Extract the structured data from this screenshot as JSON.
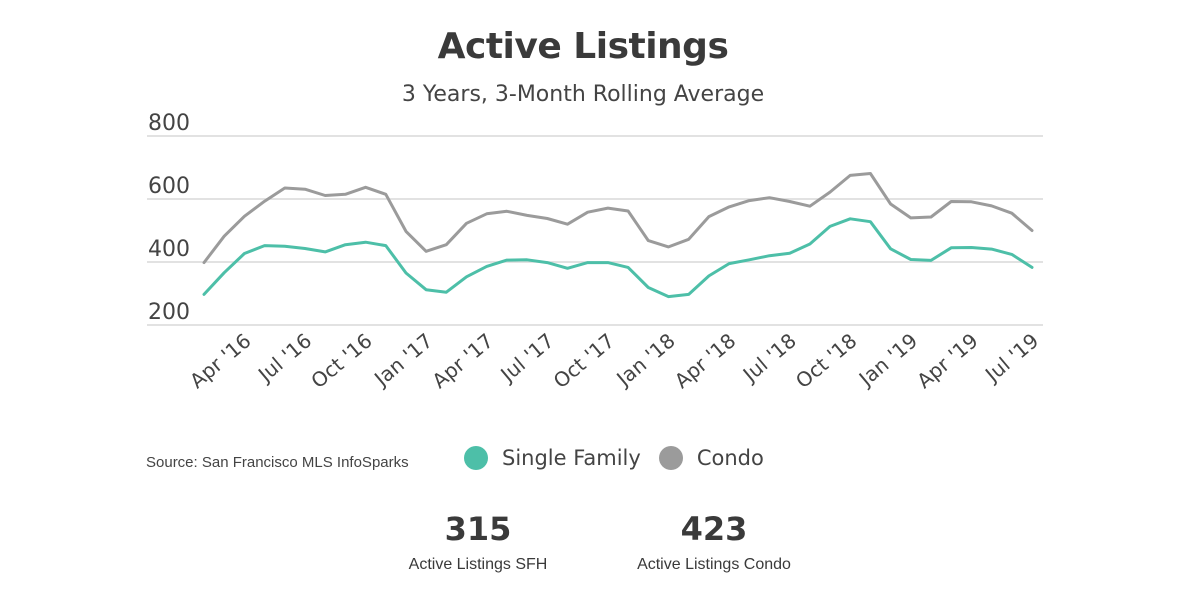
{
  "chart_data": {
    "type": "line",
    "title": "Active Listings",
    "subtitle": "3 Years, 3-Month Rolling Average",
    "ylim": [
      200,
      800
    ],
    "yticks": [
      "800",
      "600",
      "400",
      "200"
    ],
    "ytick_values": [
      800,
      600,
      400,
      200
    ],
    "grid": true,
    "xtick_labels": [
      "Apr '16",
      "Jul '16",
      "Oct '16",
      "Jan '17",
      "Apr '17",
      "Jul '17",
      "Oct '17",
      "Jan '18",
      "Apr '18",
      "Jul '18",
      "Oct '18",
      "Jan '19",
      "Apr '19",
      "Jul '19"
    ],
    "x": [
      "Feb '16",
      "Mar '16",
      "Apr '16",
      "May '16",
      "Jun '16",
      "Jul '16",
      "Aug '16",
      "Sep '16",
      "Oct '16",
      "Nov '16",
      "Dec '16",
      "Jan '17",
      "Feb '17",
      "Mar '17",
      "Apr '17",
      "May '17",
      "Jun '17",
      "Jul '17",
      "Aug '17",
      "Sep '17",
      "Oct '17",
      "Nov '17",
      "Dec '17",
      "Jan '18",
      "Feb '18",
      "Mar '18",
      "Apr '18",
      "May '18",
      "Jun '18",
      "Jul '18",
      "Aug '18",
      "Sep '18",
      "Oct '18",
      "Nov '18",
      "Dec '18",
      "Jan '19",
      "Feb '19",
      "Mar '19",
      "Apr '19",
      "May '19",
      "Jun '19",
      "Jul '19"
    ],
    "series": [
      {
        "name": "Single Family",
        "color": "#4dbfa8",
        "values": [
          297,
          366,
          427,
          452,
          450,
          443,
          432,
          455,
          463,
          452,
          365,
          312,
          304,
          353,
          386,
          406,
          407,
          398,
          380,
          398,
          398,
          383,
          319,
          290,
          297,
          356,
          395,
          407,
          420,
          428,
          457,
          513,
          537,
          528,
          442,
          408,
          405,
          445,
          446,
          441,
          424,
          383
        ]
      },
      {
        "name": "Condo",
        "color": "#9b9b9b",
        "values": [
          398,
          482,
          545,
          593,
          635,
          631,
          611,
          615,
          637,
          615,
          497,
          434,
          455,
          523,
          553,
          561,
          548,
          538,
          520,
          558,
          571,
          562,
          468,
          448,
          472,
          544,
          575,
          595,
          604,
          592,
          577,
          622,
          675,
          681,
          584,
          540,
          543,
          592,
          591,
          578,
          555,
          500
        ]
      }
    ]
  },
  "source": "Source:  San Francisco MLS InfoSparks",
  "stats": [
    {
      "value": "315",
      "label": "Active Listings SFH"
    },
    {
      "value": "423",
      "label": "Active Listings Condo"
    }
  ]
}
